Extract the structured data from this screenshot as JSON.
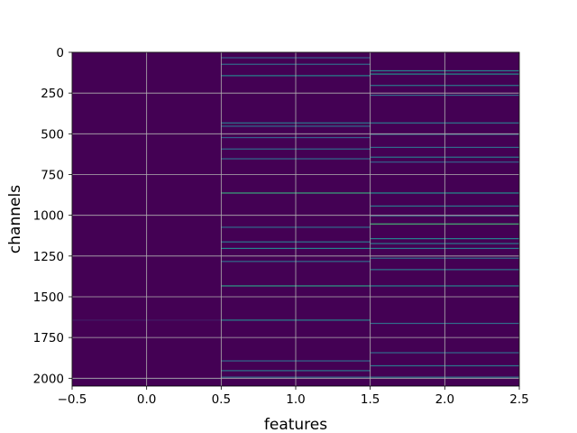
{
  "chart_data": {
    "type": "heatmap",
    "title": "",
    "xlabel": "features",
    "ylabel": "channels",
    "xlim": [
      -0.5,
      2.5
    ],
    "ylim": [
      2048,
      0
    ],
    "y_inverted": true,
    "grid": true,
    "columns": [
      0,
      1,
      2
    ],
    "num_channels": 2048,
    "colormap": "viridis",
    "value_range": [
      0,
      1
    ],
    "background_level": 0.0,
    "x_ticks": [
      -0.5,
      0.0,
      0.5,
      1.0,
      1.5,
      2.0,
      2.5
    ],
    "x_tick_labels": [
      "−0.5",
      "0.0",
      "0.5",
      "1.0",
      "1.5",
      "2.0",
      "2.5"
    ],
    "y_ticks": [
      0,
      250,
      500,
      750,
      1000,
      1250,
      1500,
      1750,
      2000
    ],
    "y_tick_labels": [
      "0",
      "250",
      "500",
      "750",
      "1000",
      "1250",
      "1500",
      "1750",
      "2000"
    ],
    "colors": {
      "grid": "#b0b0b0",
      "axis": "#000000"
    },
    "highlights": [
      {
        "feature": 0,
        "channel": 1640,
        "value": 0.08
      },
      {
        "feature": 0,
        "channel": 2000,
        "value": 0.05
      },
      {
        "feature": 1,
        "channel": 30,
        "value": 0.3
      },
      {
        "feature": 1,
        "channel": 70,
        "value": 0.35
      },
      {
        "feature": 1,
        "channel": 140,
        "value": 0.45
      },
      {
        "feature": 1,
        "channel": 430,
        "value": 0.4
      },
      {
        "feature": 1,
        "channel": 450,
        "value": 0.35
      },
      {
        "feature": 1,
        "channel": 520,
        "value": 0.3
      },
      {
        "feature": 1,
        "channel": 590,
        "value": 0.35
      },
      {
        "feature": 1,
        "channel": 650,
        "value": 0.35
      },
      {
        "feature": 1,
        "channel": 860,
        "value": 0.6
      },
      {
        "feature": 1,
        "channel": 1070,
        "value": 0.35
      },
      {
        "feature": 1,
        "channel": 1160,
        "value": 0.4
      },
      {
        "feature": 1,
        "channel": 1200,
        "value": 0.45
      },
      {
        "feature": 1,
        "channel": 1280,
        "value": 0.35
      },
      {
        "feature": 1,
        "channel": 1430,
        "value": 0.55
      },
      {
        "feature": 1,
        "channel": 1640,
        "value": 0.45
      },
      {
        "feature": 1,
        "channel": 1890,
        "value": 0.35
      },
      {
        "feature": 1,
        "channel": 1950,
        "value": 0.4
      },
      {
        "feature": 1,
        "channel": 1990,
        "value": 0.35
      },
      {
        "feature": 2,
        "channel": 110,
        "value": 0.45
      },
      {
        "feature": 2,
        "channel": 130,
        "value": 0.5
      },
      {
        "feature": 2,
        "channel": 200,
        "value": 0.4
      },
      {
        "feature": 2,
        "channel": 260,
        "value": 0.35
      },
      {
        "feature": 2,
        "channel": 430,
        "value": 0.4
      },
      {
        "feature": 2,
        "channel": 500,
        "value": 0.35
      },
      {
        "feature": 2,
        "channel": 580,
        "value": 0.35
      },
      {
        "feature": 2,
        "channel": 640,
        "value": 0.4
      },
      {
        "feature": 2,
        "channel": 670,
        "value": 0.3
      },
      {
        "feature": 2,
        "channel": 860,
        "value": 0.5
      },
      {
        "feature": 2,
        "channel": 940,
        "value": 0.4
      },
      {
        "feature": 2,
        "channel": 1000,
        "value": 0.35
      },
      {
        "feature": 2,
        "channel": 1050,
        "value": 0.65
      },
      {
        "feature": 2,
        "channel": 1140,
        "value": 0.45
      },
      {
        "feature": 2,
        "channel": 1170,
        "value": 0.4
      },
      {
        "feature": 2,
        "channel": 1200,
        "value": 0.4
      },
      {
        "feature": 2,
        "channel": 1260,
        "value": 0.35
      },
      {
        "feature": 2,
        "channel": 1330,
        "value": 0.4
      },
      {
        "feature": 2,
        "channel": 1430,
        "value": 0.45
      },
      {
        "feature": 2,
        "channel": 1660,
        "value": 0.35
      },
      {
        "feature": 2,
        "channel": 1840,
        "value": 0.35
      },
      {
        "feature": 2,
        "channel": 1920,
        "value": 0.4
      },
      {
        "feature": 2,
        "channel": 1990,
        "value": 0.4
      }
    ]
  }
}
